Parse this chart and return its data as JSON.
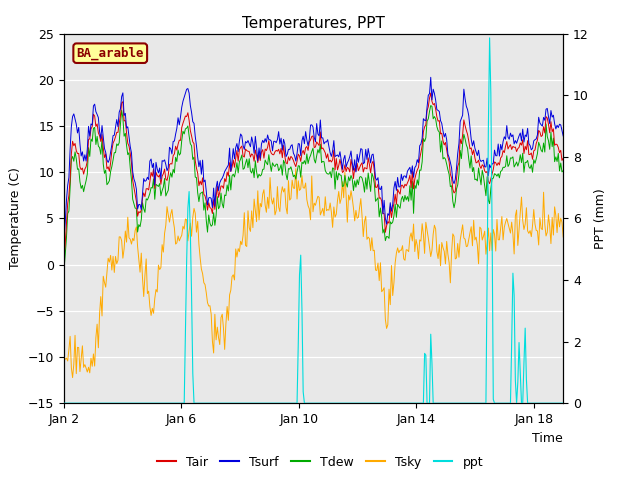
{
  "title": "Temperatures, PPT",
  "xlabel": "Time",
  "ylabel_left": "Temperature (C)",
  "ylabel_right": "PPT (mm)",
  "ylim_left": [
    -15,
    25
  ],
  "ylim_right": [
    0,
    12
  ],
  "site_label": "BA_arable",
  "line_colors": {
    "Tair": "#dd0000",
    "Tsurf": "#0000dd",
    "Tdew": "#00aa00",
    "Tsky": "#ffaa00",
    "ppt": "#00dddd"
  },
  "xtick_positions": [
    0,
    4,
    8,
    12,
    16
  ],
  "xtick_labels": [
    "Jan 2",
    "Jan 6",
    "Jan 10",
    "Jan 14",
    "Jan 18"
  ],
  "yticks_left": [
    -15,
    -10,
    -5,
    0,
    5,
    10,
    15,
    20,
    25
  ],
  "yticks_right": [
    0,
    2,
    4,
    6,
    8,
    10,
    12
  ],
  "xlim": [
    0,
    17
  ],
  "bg_color": "#e8e8e8",
  "legend_labels": [
    "Tair",
    "Tsurf",
    "Tdew",
    "Tsky",
    "ppt"
  ]
}
